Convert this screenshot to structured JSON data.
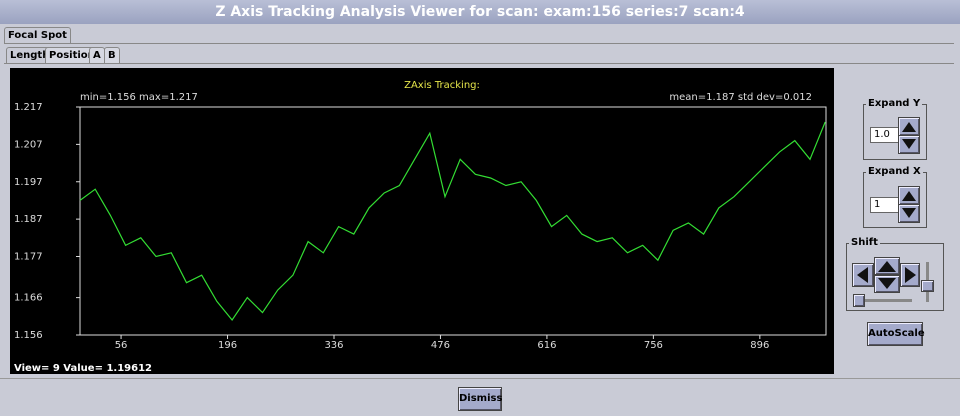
{
  "window": {
    "title": "Z Axis Tracking Analysis Viewer for scan:  exam:156 series:7 scan:4"
  },
  "tabs": {
    "main": "Focal Spot",
    "sub": [
      "Length",
      "Position",
      "A",
      "B"
    ]
  },
  "chart_data": {
    "type": "line",
    "title": "ZAxis Tracking:",
    "stats_left": "min=1.156 max=1.217",
    "stats_right": "mean=1.187 std dev=0.012",
    "status": "View= 9  Value= 1.19612",
    "color": "#33dd33",
    "x": [
      2,
      22,
      42,
      62,
      82,
      102,
      122,
      142,
      162,
      182,
      202,
      222,
      242,
      262,
      282,
      302,
      322,
      342,
      362,
      382,
      402,
      422,
      442,
      462,
      482,
      502,
      522,
      542,
      562,
      582,
      602,
      622,
      642,
      662,
      682,
      702,
      722,
      742,
      762,
      782,
      802,
      822,
      842,
      862,
      882,
      902,
      922,
      942,
      962,
      982
    ],
    "values": [
      1.192,
      1.195,
      1.188,
      1.18,
      1.182,
      1.177,
      1.178,
      1.17,
      1.172,
      1.165,
      1.16,
      1.166,
      1.162,
      1.168,
      1.172,
      1.181,
      1.178,
      1.185,
      1.183,
      1.19,
      1.194,
      1.196,
      1.203,
      1.21,
      1.193,
      1.203,
      1.199,
      1.198,
      1.196,
      1.197,
      1.192,
      1.185,
      1.188,
      1.183,
      1.181,
      1.182,
      1.178,
      1.18,
      1.176,
      1.184,
      1.186,
      1.183,
      1.19,
      1.193,
      1.197,
      1.201,
      1.205,
      1.208,
      1.203,
      1.213
    ],
    "xlim": [
      2,
      983
    ],
    "xticks": [
      56,
      196,
      336,
      476,
      616,
      756,
      896
    ],
    "ylim": [
      1.156,
      1.217
    ],
    "yticks": [
      1.156,
      1.166,
      1.177,
      1.187,
      1.197,
      1.207,
      1.217
    ]
  },
  "controls": {
    "expand_y": {
      "label": "Expand Y",
      "value": "1.0"
    },
    "expand_x": {
      "label": "Expand X",
      "value": "1"
    },
    "shift": "Shift",
    "autoscale": "AutoScale",
    "dismiss": "Dismiss"
  }
}
